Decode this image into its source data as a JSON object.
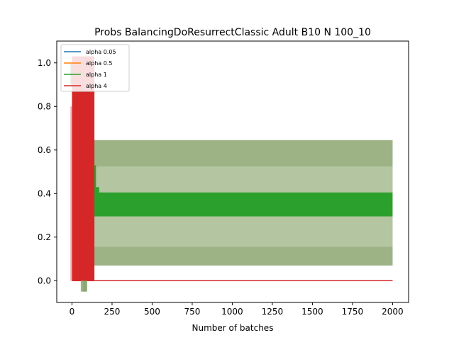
{
  "chart_data": {
    "type": "line",
    "title": "Probs BalancingDoResurrectClassic Adult B10 N 100_10",
    "xlabel": "Number of batches",
    "ylabel": "",
    "xlim": [
      -95,
      2100
    ],
    "ylim": [
      -0.1,
      1.1
    ],
    "xticks": [
      "0",
      "250",
      "500",
      "750",
      "1000",
      "1250",
      "1500",
      "1750",
      "2000"
    ],
    "yticks": [
      "0.0",
      "0.2",
      "0.4",
      "0.6",
      "0.8",
      "1.0"
    ],
    "legend_position": "upper left",
    "grid": false,
    "series": [
      {
        "name": "alpha 0.05",
        "color": "#1f77b4",
        "x": [
          0,
          2000
        ],
        "y": [
          0.0,
          0.0
        ]
      },
      {
        "name": "alpha 0.5",
        "color": "#ff7f0e",
        "x": [
          0,
          2000
        ],
        "y": [
          0.0,
          0.0
        ]
      },
      {
        "name": "alpha 1",
        "color": "#2ca02c",
        "x": [
          0,
          30,
          60,
          70,
          90,
          100,
          110,
          120,
          130,
          140,
          2000
        ],
        "y": [
          1.0,
          0.9,
          0.8,
          0.7,
          0.6,
          0.5,
          0.4,
          0.4,
          0.35,
          0.35,
          0.35
        ],
        "band_lower": [
          0.9,
          0.5,
          0.3,
          -0.05,
          0.1,
          0.2,
          0.1,
          0.0,
          0.07,
          0.07,
          0.07
        ],
        "band_upper": [
          1.0,
          1.0,
          1.0,
          1.0,
          0.84,
          0.8,
          0.7,
          0.65,
          0.645,
          0.645,
          0.645
        ],
        "band_inner_lower": [
          0.9,
          0.7,
          0.5,
          0.3,
          0.3,
          0.3,
          0.2,
          0.15,
          0.155,
          0.155,
          0.155
        ],
        "band_inner_upper": [
          1.0,
          1.0,
          0.9,
          0.85,
          0.8,
          0.7,
          0.6,
          0.55,
          0.525,
          0.525,
          0.525
        ],
        "line_width_lower": 0.295,
        "line_width_upper": 0.405
      },
      {
        "name": "alpha 4",
        "color": "#d62728",
        "x": [
          0,
          2000
        ],
        "y": [
          0.0,
          0.0
        ],
        "spike_x_max": 140,
        "spike_y_max": 1.03
      }
    ]
  }
}
